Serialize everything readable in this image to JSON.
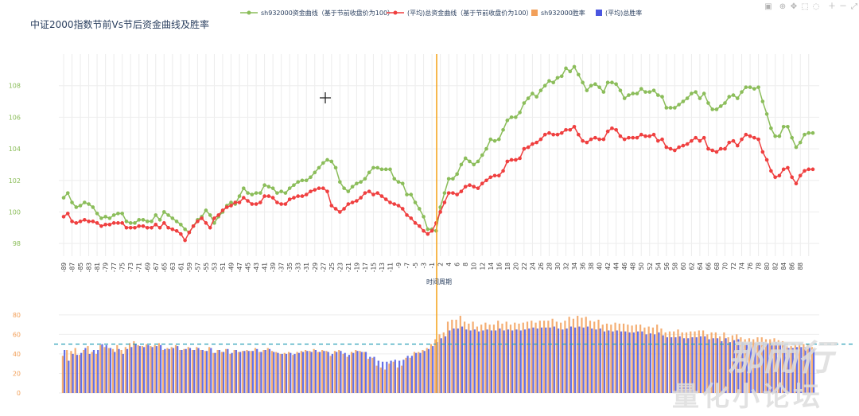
{
  "chart_data": {
    "type": "line+bar",
    "title": "中证2000指数节前Vs节后资金曲线及胜率",
    "xlabel": "时间周期",
    "legend": [
      {
        "name": "sh932000资金曲线（基于节前收盘价为100）",
        "color": "#8bbd5a",
        "kind": "line"
      },
      {
        "name": "(平均)总资金曲线（基于节前收盘价为100）",
        "color": "#ef3f3f",
        "kind": "line"
      },
      {
        "name": "sh932000胜率",
        "color": "#f2a05a",
        "kind": "bar"
      },
      {
        "name": "(平均)总胜率",
        "color": "#4a56e0",
        "kind": "bar"
      }
    ],
    "colors": {
      "green": "#8bbd5a",
      "red": "#ef3f3f",
      "orange": "#f2a05a",
      "blue": "#4a56e0",
      "vline": "#f5a623",
      "hline": "#2ba0b8"
    },
    "x_ticks": [
      "-89",
      "-87",
      "-85",
      "-83",
      "-81",
      "-79",
      "-77",
      "-75",
      "-73",
      "-71",
      "-69",
      "-67",
      "-65",
      "-63",
      "-61",
      "-59",
      "-57",
      "-55",
      "-53",
      "-51",
      "-49",
      "-47",
      "-45",
      "-43",
      "-41",
      "-39",
      "-37",
      "-35",
      "-33",
      "-31",
      "-29",
      "-27",
      "-25",
      "-23",
      "-21",
      "-19",
      "-17",
      "-15",
      "-13",
      "-11",
      "-9",
      "-7",
      "-5",
      "-3",
      "-1",
      "2",
      "4",
      "6",
      "8",
      "10",
      "12",
      "14",
      "16",
      "18",
      "20",
      "22",
      "24",
      "26",
      "28",
      "30",
      "32",
      "34",
      "36",
      "38",
      "40",
      "42",
      "44",
      "46",
      "48",
      "50",
      "52",
      "54",
      "56",
      "58",
      "60",
      "62",
      "64",
      "66",
      "68",
      "70",
      "72",
      "74",
      "76",
      "78",
      "80",
      "82",
      "84",
      "86",
      "88"
    ],
    "top_panel": {
      "ylim": [
        97.2,
        110
      ],
      "y_ticks": [
        "98",
        "100",
        "102",
        "104",
        "106",
        "108"
      ],
      "series": [
        {
          "name": "sh932000资金曲线",
          "values": [
            100.9,
            101.2,
            100.6,
            100.3,
            100.4,
            100.6,
            100.5,
            100.3,
            99.9,
            99.6,
            99.7,
            99.6,
            99.8,
            99.9,
            99.9,
            99.4,
            99.3,
            99.3,
            99.5,
            99.5,
            99.4,
            99.4,
            99.8,
            99.5,
            100.0,
            99.8,
            99.6,
            99.4,
            99.2,
            98.9,
            98.7,
            99.1,
            99.5,
            99.7,
            100.1,
            99.8,
            99.3,
            99.7,
            100.0,
            100.4,
            100.6,
            100.5,
            101.0,
            101.5,
            101.2,
            101.1,
            101.2,
            101.2,
            101.7,
            101.6,
            101.5,
            101.2,
            101.3,
            101.2,
            101.5,
            101.7,
            101.9,
            102.0,
            102.0,
            102.2,
            102.5,
            102.8,
            103.1,
            103.3,
            103.2,
            102.8,
            101.9,
            101.5,
            101.3,
            101.6,
            101.8,
            101.9,
            102.1,
            102.5,
            102.8,
            102.8,
            102.7,
            102.7,
            102.7,
            102.1,
            101.9,
            101.8,
            101.1,
            101.1,
            100.6,
            100.2,
            99.7,
            98.9,
            98.9,
            98.8,
            100.3,
            101.2,
            102.1,
            102.1,
            102.4,
            103.0,
            103.4,
            103.2,
            103.0,
            103.2,
            103.6,
            104.0,
            104.6,
            104.5,
            104.6,
            105.2,
            105.8,
            106.0,
            106.0,
            106.3,
            106.9,
            107.2,
            107.5,
            107.3,
            107.7,
            108.0,
            108.3,
            108.2,
            108.5,
            108.6,
            109.1,
            108.9,
            109.2,
            108.7,
            108.2,
            107.7,
            108.0,
            108.1,
            107.9,
            107.6,
            108.2,
            108.2,
            108.1,
            107.7,
            107.2,
            107.4,
            107.5,
            107.5,
            107.8,
            107.6,
            107.6,
            107.7,
            107.4,
            107.3,
            106.6,
            106.6,
            106.6,
            106.8,
            107.0,
            107.2,
            107.5,
            107.6,
            107.2,
            107.5,
            106.9,
            106.5,
            106.5,
            106.7,
            106.9,
            107.3,
            107.4,
            107.2,
            107.6,
            107.9,
            107.9,
            107.8,
            107.9,
            107.0,
            106.2,
            105.3,
            104.8,
            104.8,
            105.4,
            105.4,
            104.7,
            104.1,
            104.4,
            104.9,
            105.0,
            105.0
          ]
        },
        {
          "name": "(平均)总资金曲线",
          "values": [
            99.7,
            99.9,
            99.4,
            99.3,
            99.4,
            99.5,
            99.4,
            99.4,
            99.3,
            99.1,
            99.2,
            99.2,
            99.3,
            99.3,
            99.3,
            99.0,
            99.0,
            99.0,
            99.1,
            99.1,
            99.0,
            99.0,
            99.2,
            99.0,
            99.3,
            99.0,
            98.9,
            98.8,
            98.6,
            98.2,
            98.7,
            99.1,
            99.4,
            99.6,
            99.3,
            99.0,
            99.6,
            99.8,
            100.1,
            100.3,
            100.4,
            100.6,
            100.6,
            100.9,
            100.7,
            100.5,
            100.5,
            100.6,
            101.0,
            101.0,
            100.9,
            100.6,
            100.5,
            100.5,
            100.8,
            100.9,
            101.0,
            101.0,
            101.1,
            101.3,
            101.4,
            101.5,
            101.5,
            101.3,
            100.4,
            100.2,
            100.0,
            100.2,
            100.5,
            100.6,
            100.7,
            100.9,
            101.2,
            101.3,
            101.1,
            101.2,
            101.0,
            100.8,
            100.6,
            100.5,
            100.4,
            100.2,
            99.8,
            99.6,
            99.3,
            99.1,
            98.8,
            98.6,
            98.8,
            99.3,
            100.0,
            100.6,
            101.2,
            101.2,
            101.1,
            101.3,
            101.6,
            101.7,
            101.6,
            101.5,
            101.8,
            102.0,
            102.2,
            102.3,
            102.3,
            102.6,
            103.2,
            103.3,
            103.3,
            103.4,
            104.0,
            104.1,
            104.3,
            104.4,
            104.6,
            104.9,
            105.0,
            104.9,
            104.9,
            105.0,
            105.2,
            105.2,
            105.4,
            104.9,
            104.5,
            104.4,
            104.6,
            104.7,
            104.6,
            104.6,
            105.1,
            105.3,
            105.2,
            104.8,
            104.6,
            104.7,
            104.7,
            104.7,
            104.9,
            104.8,
            104.8,
            104.9,
            104.5,
            104.6,
            104.1,
            104.0,
            103.9,
            104.1,
            104.2,
            104.3,
            104.5,
            104.7,
            104.5,
            104.7,
            104.0,
            103.9,
            103.8,
            104.0,
            104.0,
            104.4,
            104.5,
            104.2,
            104.6,
            104.9,
            104.8,
            104.7,
            104.6,
            103.8,
            103.3,
            102.6,
            102.2,
            102.3,
            102.7,
            102.8,
            102.2,
            101.8,
            102.3,
            102.6,
            102.7,
            102.7
          ]
        }
      ]
    },
    "bottom_panel": {
      "ylim": [
        0,
        88
      ],
      "y_ticks": [
        "0",
        "20",
        "40",
        "60",
        "80"
      ],
      "hline": 50,
      "series": [
        {
          "name": "sh932000胜率",
          "values": [
            38,
            44,
            43,
            46,
            39,
            44,
            48,
            42,
            40,
            49,
            47,
            46,
            45,
            49,
            44,
            47,
            51,
            53,
            49,
            48,
            50,
            48,
            49,
            51,
            44,
            46,
            47,
            49,
            44,
            45,
            47,
            44,
            47,
            44,
            43,
            47,
            41,
            44,
            42,
            45,
            40,
            44,
            42,
            43,
            44,
            43,
            46,
            42,
            44,
            46,
            43,
            42,
            40,
            41,
            42,
            39,
            42,
            43,
            44,
            43,
            45,
            42,
            44,
            43,
            38,
            43,
            44,
            40,
            37,
            42,
            44,
            43,
            42,
            35,
            36,
            28,
            26,
            24,
            30,
            32,
            26,
            28,
            36,
            36,
            42,
            42,
            44,
            46,
            50,
            55,
            60,
            62,
            73,
            75,
            75,
            79,
            73,
            71,
            73,
            68,
            70,
            72,
            70,
            70,
            74,
            71,
            73,
            70,
            72,
            71,
            72,
            73,
            74,
            72,
            74,
            74,
            74,
            76,
            73,
            72,
            74,
            78,
            76,
            79,
            77,
            78,
            74,
            73,
            75,
            70,
            71,
            70,
            72,
            71,
            71,
            70,
            69,
            70,
            70,
            67,
            68,
            67,
            70,
            66,
            62,
            63,
            63,
            65,
            62,
            62,
            63,
            63,
            64,
            64,
            60,
            62,
            62,
            58,
            62,
            57,
            59,
            60,
            57,
            55,
            56,
            55,
            57,
            57,
            55,
            55,
            56,
            54,
            53,
            48,
            48,
            50,
            50,
            50,
            50,
            47,
            48,
            47,
            48,
            52,
            53,
            54
          ]
        },
        {
          "name": "(平均)总胜率",
          "values": [
            44,
            33,
            40,
            39,
            41,
            46,
            40,
            44,
            44,
            50,
            49,
            46,
            42,
            45,
            40,
            45,
            47,
            50,
            48,
            47,
            49,
            47,
            48,
            49,
            45,
            45,
            46,
            48,
            44,
            45,
            46,
            44,
            46,
            44,
            43,
            46,
            41,
            44,
            42,
            45,
            41,
            44,
            42,
            43,
            43,
            43,
            45,
            42,
            44,
            45,
            42,
            41,
            40,
            40,
            41,
            40,
            41,
            42,
            43,
            42,
            44,
            42,
            43,
            42,
            40,
            42,
            43,
            41,
            39,
            41,
            43,
            42,
            42,
            37,
            37,
            33,
            32,
            32,
            33,
            34,
            33,
            34,
            38,
            38,
            41,
            41,
            43,
            45,
            48,
            52,
            56,
            58,
            64,
            66,
            66,
            68,
            65,
            64,
            65,
            63,
            64,
            65,
            64,
            64,
            66,
            64,
            65,
            64,
            65,
            64,
            65,
            66,
            67,
            66,
            67,
            67,
            67,
            68,
            66,
            65,
            66,
            68,
            67,
            68,
            67,
            68,
            66,
            65,
            66,
            63,
            64,
            63,
            64,
            63,
            63,
            62,
            62,
            63,
            63,
            60,
            61,
            60,
            62,
            59,
            57,
            57,
            57,
            58,
            56,
            56,
            57,
            57,
            58,
            58,
            55,
            56,
            56,
            53,
            56,
            52,
            54,
            55,
            52,
            51,
            52,
            51,
            52,
            52,
            51,
            51,
            52,
            50,
            49,
            46,
            46,
            47,
            47,
            47,
            47,
            45,
            46,
            45,
            46,
            49,
            49,
            50
          ]
        }
      ]
    }
  },
  "watermark": {
    "line1": "那而行",
    "line2": "量化小论坛"
  },
  "toolbar": [
    "camera-icon",
    "zoom-icon",
    "pan-icon",
    "select-icon",
    "lasso-icon",
    "zoom-in-icon",
    "zoom-out-icon",
    "autoscale-icon"
  ]
}
